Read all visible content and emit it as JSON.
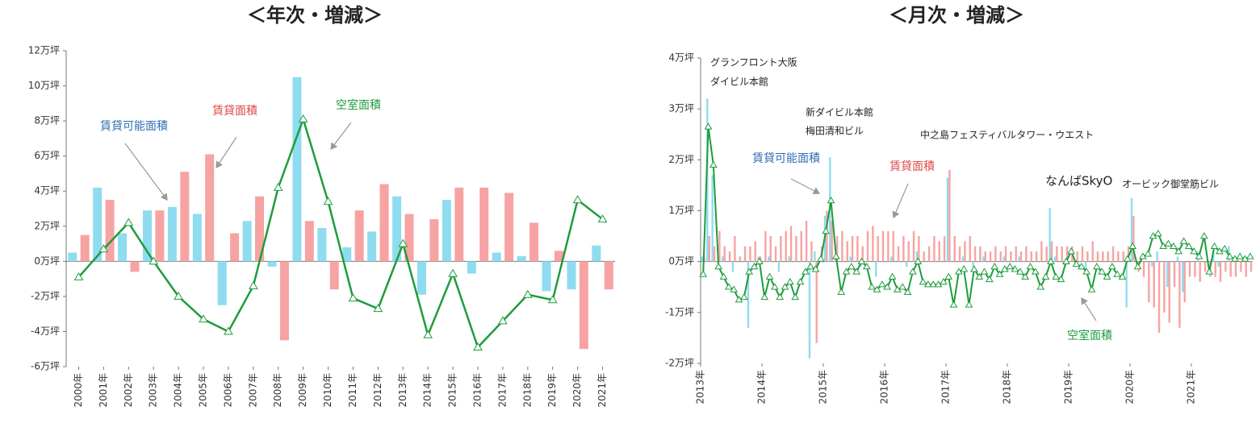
{
  "chart_data": [
    {
      "type": "bar",
      "title": "＜年次・増減＞",
      "categories": [
        "2000年",
        "2001年",
        "2002年",
        "2003年",
        "2004年",
        "2005年",
        "2006年",
        "2007年",
        "2008年",
        "2009年",
        "2010年",
        "2011年",
        "2012年",
        "2013年",
        "2014年",
        "2015年",
        "2016年",
        "2017年",
        "2018年",
        "2019年",
        "2020年",
        "2021年"
      ],
      "series": [
        {
          "name": "賃貸可能面積",
          "color": "#8fdcf0",
          "type": "bar",
          "values": [
            0.5,
            4.2,
            1.6,
            2.9,
            3.1,
            2.7,
            -2.5,
            2.3,
            -0.3,
            10.5,
            1.9,
            0.8,
            1.7,
            3.7,
            -1.9,
            3.5,
            -0.7,
            0.5,
            0.3,
            -1.7,
            -1.6,
            0.9
          ]
        },
        {
          "name": "賃貸面積",
          "color": "#f7a3a3",
          "type": "bar",
          "values": [
            1.5,
            3.5,
            -0.6,
            2.9,
            5.1,
            6.1,
            1.6,
            3.7,
            -4.5,
            2.3,
            -1.6,
            2.9,
            4.4,
            2.7,
            2.4,
            4.2,
            4.2,
            3.9,
            2.2,
            0.6,
            -5.0,
            -1.6
          ]
        },
        {
          "name": "空室面積",
          "color": "#1e9c3c",
          "type": "line",
          "values": [
            -0.9,
            0.7,
            2.2,
            0.0,
            -2.0,
            -3.3,
            -4.0,
            -1.4,
            4.2,
            8.1,
            3.4,
            -2.1,
            -2.7,
            1.0,
            -4.2,
            -0.7,
            -4.9,
            -3.4,
            -1.9,
            -2.2,
            3.5,
            2.4
          ]
        }
      ],
      "ylim": [
        -6,
        12
      ],
      "yticks": [
        {
          "value": -6,
          "label": "-6万坪"
        },
        {
          "value": -4,
          "label": "-4万坪"
        },
        {
          "value": -2,
          "label": "-2万坪"
        },
        {
          "value": 0,
          "label": "0万坪"
        },
        {
          "value": 2,
          "label": "2万坪"
        },
        {
          "value": 4,
          "label": "4万坪"
        },
        {
          "value": 6,
          "label": "6万坪"
        },
        {
          "value": 8,
          "label": "8万坪"
        },
        {
          "value": 10,
          "label": "10万坪"
        },
        {
          "value": 12,
          "label": "12万坪"
        }
      ],
      "annotations": []
    },
    {
      "type": "bar",
      "title": "＜月次・増減＞",
      "categories": [
        "2013年",
        null,
        null,
        null,
        null,
        null,
        null,
        null,
        null,
        null,
        null,
        null,
        "2014年",
        null,
        null,
        null,
        null,
        null,
        null,
        null,
        null,
        null,
        null,
        null,
        "2015年",
        null,
        null,
        null,
        null,
        null,
        null,
        null,
        null,
        null,
        null,
        null,
        "2016年",
        null,
        null,
        null,
        null,
        null,
        null,
        null,
        null,
        null,
        null,
        null,
        "2017年",
        null,
        null,
        null,
        null,
        null,
        null,
        null,
        null,
        null,
        null,
        null,
        "2018年",
        null,
        null,
        null,
        null,
        null,
        null,
        null,
        null,
        null,
        null,
        null,
        "2019年",
        null,
        null,
        null,
        null,
        null,
        null,
        null,
        null,
        null,
        null,
        null,
        "2020年",
        null,
        null,
        null,
        null,
        null,
        null,
        null,
        null,
        null,
        null,
        null,
        "2021年",
        null,
        null,
        null,
        null,
        null,
        null,
        null,
        null,
        null,
        null,
        null
      ],
      "series": [
        {
          "name": "賃貸可能面積",
          "color": "#8fdcf0",
          "type": "bar",
          "values": [
            0.1,
            3.2,
            1.7,
            0,
            0.1,
            0,
            -0.2,
            0,
            0,
            -1.3,
            0,
            0.1,
            0,
            0.1,
            0,
            -0.2,
            0,
            0.1,
            0,
            0,
            0,
            -1.9,
            0.2,
            0,
            0.9,
            2.05,
            0.1,
            0,
            0,
            0.1,
            0,
            -0.1,
            0,
            0,
            -0.3,
            0,
            0,
            0.1,
            0,
            0,
            -0.1,
            0,
            0.2,
            0,
            0,
            0,
            0,
            0,
            1.65,
            0,
            0,
            0.1,
            0,
            -0.1,
            0,
            0.1,
            0,
            0,
            0,
            0.1,
            0,
            0,
            0.1,
            0,
            0,
            0,
            0,
            0,
            1.05,
            0.1,
            0,
            0,
            0,
            -0.1,
            0,
            -0.2,
            0,
            0,
            0,
            0,
            0,
            0,
            0,
            -0.9,
            1.25,
            0,
            0,
            0,
            -0.1,
            0.2,
            0,
            -0.5,
            0,
            0.1,
            -0.6,
            0,
            0,
            0.2,
            0,
            0,
            0.2,
            -0.1,
            0,
            0.3,
            0,
            0,
            0,
            0
          ]
        },
        {
          "name": "賃貸面積",
          "color": "#f7a3a3",
          "type": "bar",
          "values": [
            0.1,
            0.5,
            0.3,
            0.6,
            0.3,
            0.2,
            0.5,
            0.1,
            0.3,
            0.3,
            0.4,
            0.1,
            0.6,
            0.5,
            0.3,
            0.5,
            0.6,
            0.7,
            0.5,
            0.6,
            0.8,
            0.4,
            -1.6,
            0.3,
            1.0,
            0.8,
            0.5,
            0.6,
            0.4,
            0.5,
            0.5,
            0.3,
            0.6,
            0.7,
            0.5,
            0.6,
            0.6,
            0.6,
            0.3,
            0.5,
            0.4,
            0.6,
            0.5,
            0.2,
            0.3,
            0.5,
            0.4,
            0.5,
            1.8,
            0.5,
            0.3,
            0.4,
            0.5,
            0.3,
            0.3,
            0.2,
            0.2,
            0.3,
            0.2,
            0.3,
            0.2,
            0.3,
            0.2,
            0.3,
            0.2,
            0.2,
            0.4,
            0.3,
            0.4,
            0.3,
            0.3,
            0.3,
            0.3,
            0.2,
            0.3,
            0.2,
            0.4,
            0.2,
            0.2,
            0.2,
            0.3,
            0.2,
            0.2,
            0.3,
            0.9,
            -0.2,
            -0.3,
            -0.8,
            -0.9,
            -1.4,
            -1.0,
            -1.2,
            -0.5,
            -1.3,
            -0.8,
            -0.3,
            -0.3,
            -0.4,
            -0.2,
            -0.3,
            -0.3,
            -0.4,
            -0.2,
            -0.3,
            -0.3,
            -0.2,
            -0.3,
            -0.2
          ]
        },
        {
          "name": "空室面積",
          "color": "#1e9c3c",
          "type": "line",
          "values": [
            -0.25,
            2.65,
            1.9,
            -0.1,
            -0.3,
            -0.5,
            -0.55,
            -0.75,
            -0.7,
            -0.2,
            -0.1,
            0.0,
            -0.7,
            -0.3,
            -0.5,
            -0.7,
            -0.5,
            -0.4,
            -0.7,
            -0.4,
            -0.2,
            -0.1,
            -0.15,
            0.05,
            0.6,
            1.2,
            0.1,
            -0.6,
            -0.2,
            -0.1,
            -0.2,
            0.0,
            -0.1,
            -0.5,
            -0.55,
            -0.45,
            -0.5,
            -0.3,
            -0.55,
            -0.5,
            -0.6,
            -0.2,
            0.0,
            -0.4,
            -0.45,
            -0.45,
            -0.45,
            -0.4,
            -0.3,
            -0.85,
            -0.2,
            -0.15,
            -0.85,
            -0.15,
            -0.3,
            -0.2,
            -0.35,
            -0.1,
            -0.25,
            -0.15,
            -0.1,
            -0.15,
            -0.2,
            -0.3,
            -0.1,
            -0.2,
            -0.5,
            -0.3,
            0.0,
            -0.3,
            -0.35,
            0.0,
            0.2,
            -0.05,
            -0.1,
            -0.2,
            -0.55,
            -0.1,
            -0.2,
            -0.3,
            -0.1,
            -0.25,
            -0.3,
            0.05,
            0.3,
            -0.1,
            0.1,
            0.15,
            0.5,
            0.55,
            0.3,
            0.35,
            0.3,
            0.2,
            0.4,
            0.3,
            0.2,
            0.1,
            0.5,
            -0.2,
            0.3,
            0.2,
            0.25,
            0.1,
            0.05,
            0.1,
            0.05,
            0.1
          ]
        }
      ],
      "ylim": [
        -2,
        4
      ],
      "yticks": [
        {
          "value": -2,
          "label": "-2万坪"
        },
        {
          "value": -1,
          "label": "-1万坪"
        },
        {
          "value": 0,
          "label": "0万坪"
        },
        {
          "value": 1,
          "label": "1万坪"
        },
        {
          "value": 2,
          "label": "2万坪"
        },
        {
          "value": 3,
          "label": "3万坪"
        },
        {
          "value": 4,
          "label": "4万坪"
        }
      ],
      "annotations": [
        "グランフロント大阪",
        "ダイビル本館",
        "新ダイビル本館",
        "梅田清和ビル",
        "中之島フェスティバルタワー・ウエスト",
        "なんばSkyO",
        "オービック御堂筋ビル"
      ]
    }
  ]
}
